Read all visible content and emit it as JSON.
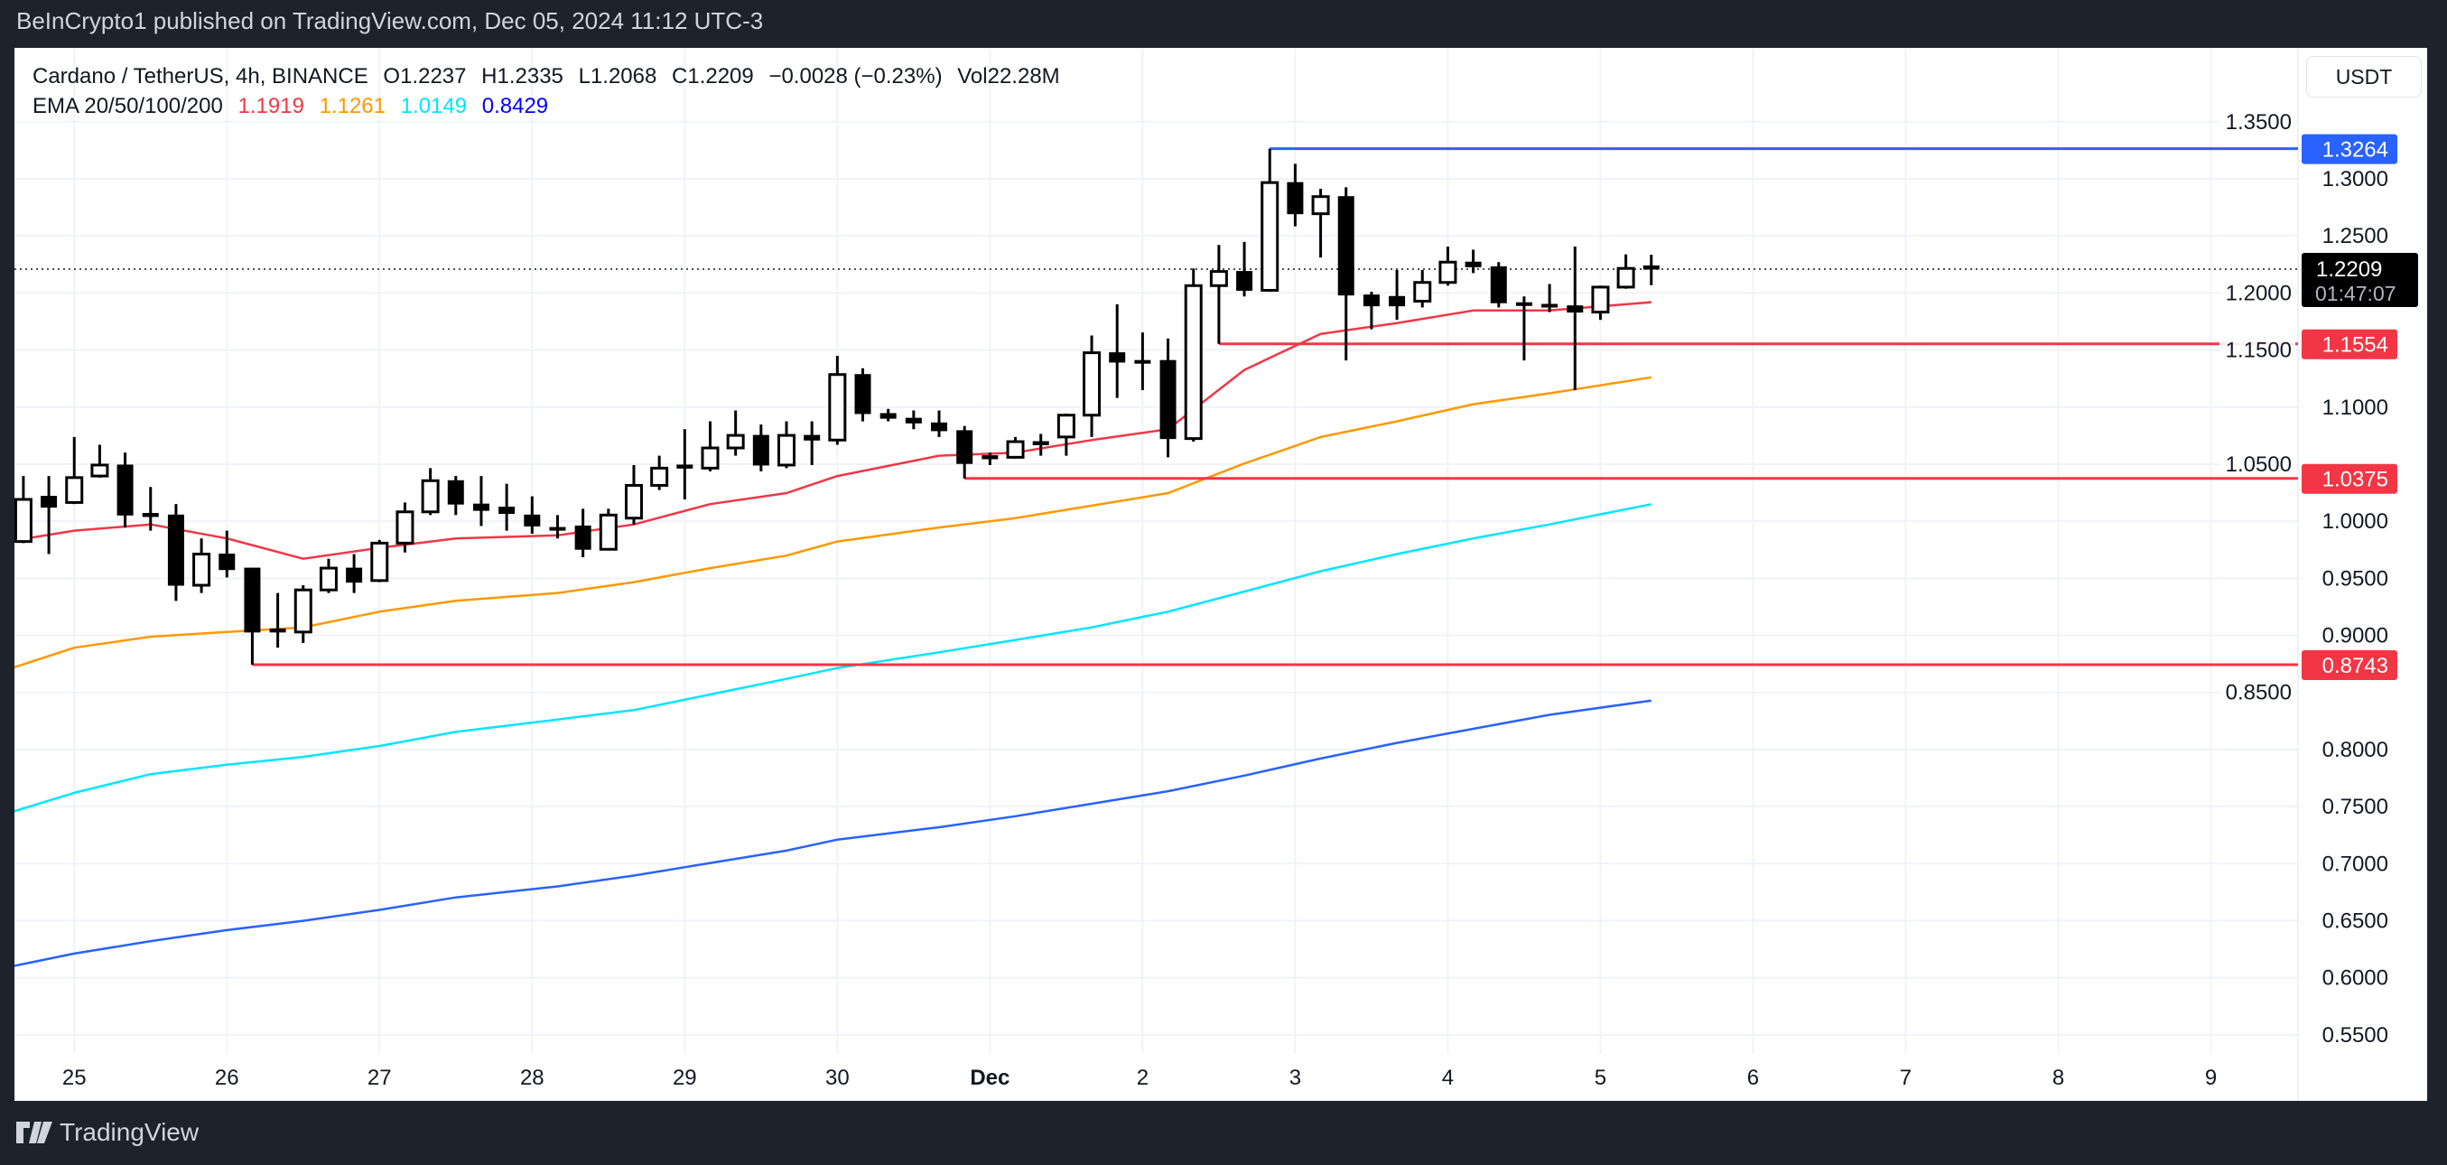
{
  "header": {
    "published": "BeInCrypto1 published on TradingView.com, Dec 05, 2024 11:12 UTC-3"
  },
  "legend": {
    "symbol": "Cardano / TetherUS, 4h, BINANCE",
    "open": "O1.2237",
    "high": "H1.2335",
    "low": "L1.2068",
    "close": "C1.2209",
    "change": "−0.0028 (−0.23%)",
    "volume": "Vol22.28M",
    "ema_label": "EMA 20/50/100/200",
    "ema_values": [
      "1.1919",
      "1.1261",
      "1.0149",
      "0.8429"
    ]
  },
  "axis": {
    "currency": "USDT",
    "countdown": "01:47:07"
  },
  "footer": {
    "brand": "TradingView"
  },
  "colors": {
    "ema20": "#f23645",
    "ema50": "#ff9800",
    "ema100": "#00e5ff",
    "ema200": "#2962ff",
    "support": "#f23645",
    "resistance": "#2962ff",
    "up": "#ffffff",
    "down": "#000000"
  },
  "chart_data": {
    "type": "candlestick",
    "title": "Cardano / TetherUS, 4h, BINANCE",
    "interval": "4h",
    "start": "2024-11-24 16:00",
    "ylim": [
      0.55,
      1.35
    ],
    "yticks": [
      "1.3500",
      "1.3000",
      "1.2500",
      "1.2000",
      "1.1500",
      "1.1000",
      "1.0500",
      "1.0000",
      "0.9500",
      "0.9000",
      "0.8500",
      "0.8000",
      "0.7500",
      "0.7000",
      "0.6500",
      "0.6000",
      "0.5500"
    ],
    "xticks": [
      {
        "label": "25",
        "t": "2024-11-25 00:00"
      },
      {
        "label": "26",
        "t": "2024-11-26 00:00"
      },
      {
        "label": "27",
        "t": "2024-11-27 00:00"
      },
      {
        "label": "28",
        "t": "2024-11-28 00:00"
      },
      {
        "label": "29",
        "t": "2024-11-29 00:00"
      },
      {
        "label": "30",
        "t": "2024-11-30 00:00"
      },
      {
        "label": "Dec",
        "t": "2024-12-01 00:00",
        "bold": true
      },
      {
        "label": "2",
        "t": "2024-12-02 00:00"
      },
      {
        "label": "3",
        "t": "2024-12-03 00:00"
      },
      {
        "label": "4",
        "t": "2024-12-04 00:00"
      },
      {
        "label": "5",
        "t": "2024-12-05 00:00"
      },
      {
        "label": "6",
        "t": "2024-12-06 00:00"
      },
      {
        "label": "7",
        "t": "2024-12-07 00:00"
      },
      {
        "label": "8",
        "t": "2024-12-08 00:00"
      },
      {
        "label": "9",
        "t": "2024-12-09 00:00"
      }
    ],
    "grid": true,
    "ohlc": [
      [
        0.9822,
        1.0396,
        0.9808,
        1.0191
      ],
      [
        1.0218,
        1.0396,
        0.9712,
        1.0123
      ],
      [
        1.0164,
        1.0738,
        1.015,
        1.0382
      ],
      [
        1.0396,
        1.067,
        1.0382,
        1.0492
      ],
      [
        1.0492,
        1.0601,
        0.9945,
        1.0054
      ],
      [
        1.0068,
        1.03,
        0.9917,
        1.0041
      ],
      [
        1.0054,
        1.015,
        0.9302,
        0.9439
      ],
      [
        0.9439,
        0.9849,
        0.9371,
        0.9712
      ],
      [
        0.9712,
        0.9917,
        0.9507,
        0.9576
      ],
      [
        0.9589,
        0.9589,
        0.8743,
        0.9029
      ],
      [
        0.9056,
        0.9371,
        0.8892,
        0.9029
      ],
      [
        0.9029,
        0.9439,
        0.8933,
        0.9398
      ],
      [
        0.9398,
        0.9671,
        0.9371,
        0.9589
      ],
      [
        0.9589,
        0.9712,
        0.9371,
        0.9466
      ],
      [
        0.948,
        0.9836,
        0.9466,
        0.9808
      ],
      [
        0.9808,
        1.0164,
        0.9726,
        1.0082
      ],
      [
        1.0082,
        1.0465,
        1.0054,
        1.0355
      ],
      [
        1.0355,
        1.0396,
        1.0054,
        1.015
      ],
      [
        1.015,
        1.0396,
        0.9958,
        1.0095
      ],
      [
        1.0123,
        1.0328,
        0.9917,
        1.0068
      ],
      [
        1.0054,
        1.0218,
        0.989,
        0.9958
      ],
      [
        0.9945,
        1.0054,
        0.9849,
        0.994
      ],
      [
        0.9958,
        1.0109,
        0.9685,
        0.9754
      ],
      [
        0.9754,
        1.0109,
        0.9754,
        1.0054
      ],
      [
        1.0027,
        1.0492,
        0.9972,
        1.0314
      ],
      [
        1.0314,
        1.0574,
        1.0273,
        1.0465
      ],
      [
        1.0492,
        1.0806,
        1.0191,
        1.0465
      ],
      [
        1.0465,
        1.0875,
        1.0437,
        1.0642
      ],
      [
        1.0642,
        1.097,
        1.0574,
        1.0752
      ],
      [
        1.0752,
        1.0847,
        1.0437,
        1.0492
      ],
      [
        1.0492,
        1.0875,
        1.0465,
        1.0752
      ],
      [
        1.0752,
        1.0875,
        1.0492,
        1.0711
      ],
      [
        1.0711,
        1.1449,
        1.067,
        1.1285
      ],
      [
        1.1285,
        1.134,
        1.0875,
        1.0943
      ],
      [
        1.0943,
        1.0984,
        1.0875,
        1.0902
      ],
      [
        1.0902,
        1.097,
        1.0806,
        1.0861
      ],
      [
        1.0861,
        1.097,
        1.0738,
        1.0793
      ],
      [
        1.0793,
        1.0834,
        1.0375,
        1.0506
      ],
      [
        1.0574,
        1.0601,
        1.0492,
        1.0547
      ],
      [
        1.056,
        1.0738,
        1.0547,
        1.0697
      ],
      [
        1.0697,
        1.0765,
        1.0574,
        1.067
      ],
      [
        1.0738,
        1.0943,
        1.0574,
        1.0929
      ],
      [
        1.0929,
        1.1627,
        1.0738,
        1.1476
      ],
      [
        1.1476,
        1.19,
        1.108,
        1.1394
      ],
      [
        1.1408,
        1.1654,
        1.1148,
        1.1394
      ],
      [
        1.1408,
        1.16,
        1.056,
        1.0724
      ],
      [
        1.0724,
        1.2215,
        1.0697,
        1.2064
      ],
      [
        1.2064,
        1.242,
        1.1554,
        1.2188
      ],
      [
        1.2188,
        1.2447,
        1.1969,
        1.2023
      ],
      [
        1.2023,
        1.3264,
        1.201,
        1.2967
      ],
      [
        1.2967,
        1.3131,
        1.2584,
        1.2694
      ],
      [
        1.2694,
        1.2912,
        1.2311,
        1.2844
      ],
      [
        1.2844,
        1.2926,
        1.1408,
        1.1982
      ],
      [
        1.1982,
        1.201,
        1.1682,
        1.1887
      ],
      [
        1.1969,
        1.2201,
        1.1764,
        1.1887
      ],
      [
        1.1928,
        1.2201,
        1.1873,
        1.2092
      ],
      [
        1.2092,
        1.2406,
        1.2064,
        1.227
      ],
      [
        1.227,
        1.2379,
        1.2174,
        1.2229
      ],
      [
        1.2229,
        1.227,
        1.1873,
        1.1914
      ],
      [
        1.1914,
        1.1969,
        1.1408,
        1.19
      ],
      [
        1.19,
        1.2078,
        1.1832,
        1.1887
      ],
      [
        1.1887,
        1.2406,
        1.1148,
        1.1832
      ],
      [
        1.1832,
        1.2064,
        1.1764,
        1.2051
      ],
      [
        1.2051,
        1.2338,
        1.2037,
        1.2215
      ],
      [
        1.2237,
        1.2335,
        1.2068,
        1.2209
      ]
    ],
    "ema_times": [
      "2024-11-24 12:00",
      "2024-11-25 00:00",
      "2024-11-25 12:00",
      "2024-11-26 00:00",
      "2024-11-26 12:00",
      "2024-11-27 00:00",
      "2024-11-27 12:00",
      "2024-11-28 04:00",
      "2024-11-28 16:00",
      "2024-11-29 04:00",
      "2024-11-29 16:00",
      "2024-11-30 00:00",
      "2024-11-30 16:00",
      "2024-12-01 04:00",
      "2024-12-01 16:00",
      "2024-12-02 04:00",
      "2024-12-02 16:00",
      "2024-12-03 04:00",
      "2024-12-03 16:00",
      "2024-12-04 04:00",
      "2024-12-04 16:00",
      "2024-12-05 08:00"
    ],
    "series": [
      {
        "name": "EMA 20",
        "color": "#f23645",
        "values": [
          0.9808,
          0.9917,
          0.9972,
          0.9849,
          0.9671,
          0.9767,
          0.9849,
          0.9876,
          0.9972,
          1.015,
          1.0246,
          1.0396,
          1.0574,
          1.0601,
          1.0711,
          1.0806,
          1.1326,
          1.1641,
          1.1736,
          1.1846,
          1.1846,
          1.1919
        ]
      },
      {
        "name": "EMA 50",
        "color": "#ff9800",
        "values": [
          0.8673,
          0.8892,
          0.8988,
          0.9029,
          0.907,
          0.9207,
          0.9302,
          0.9371,
          0.9466,
          0.9589,
          0.9699,
          0.9822,
          0.9945,
          1.0027,
          1.0136,
          1.0246,
          1.0506,
          1.0738,
          1.0875,
          1.1025,
          1.1121,
          1.1261
        ]
      },
      {
        "name": "EMA 100",
        "color": "#00e5ff",
        "values": [
          0.7415,
          0.762,
          0.7784,
          0.7866,
          0.7935,
          0.8031,
          0.8154,
          0.8263,
          0.8345,
          0.8482,
          0.8619,
          0.8714,
          0.8851,
          0.896,
          0.907,
          0.9207,
          0.9384,
          0.9562,
          0.9712,
          0.9849,
          0.9972,
          1.0149
        ]
      },
      {
        "name": "EMA 200",
        "color": "#2962ff",
        "values": [
          0.6075,
          0.6212,
          0.6321,
          0.6417,
          0.6499,
          0.6595,
          0.6704,
          0.68,
          0.6895,
          0.7005,
          0.7114,
          0.721,
          0.7319,
          0.7415,
          0.7524,
          0.7634,
          0.7771,
          0.7921,
          0.8058,
          0.8181,
          0.8304,
          0.8429
        ]
      }
    ],
    "levels": [
      {
        "price": 1.3264,
        "label": "1.3264",
        "from": "2024-12-02 20:00",
        "color": "#2962ff"
      },
      {
        "price": 1.1554,
        "label": "1.1554",
        "from": "2024-12-02 12:00",
        "color": "#f23645"
      },
      {
        "price": 1.0375,
        "label": "1.0375",
        "from": "2024-11-30 20:00",
        "color": "#f23645"
      },
      {
        "price": 0.8743,
        "label": "0.8743",
        "from": "2024-11-26 04:00",
        "color": "#f23645"
      }
    ],
    "last_price": {
      "price": 1.2209,
      "label": "1.2209"
    }
  }
}
